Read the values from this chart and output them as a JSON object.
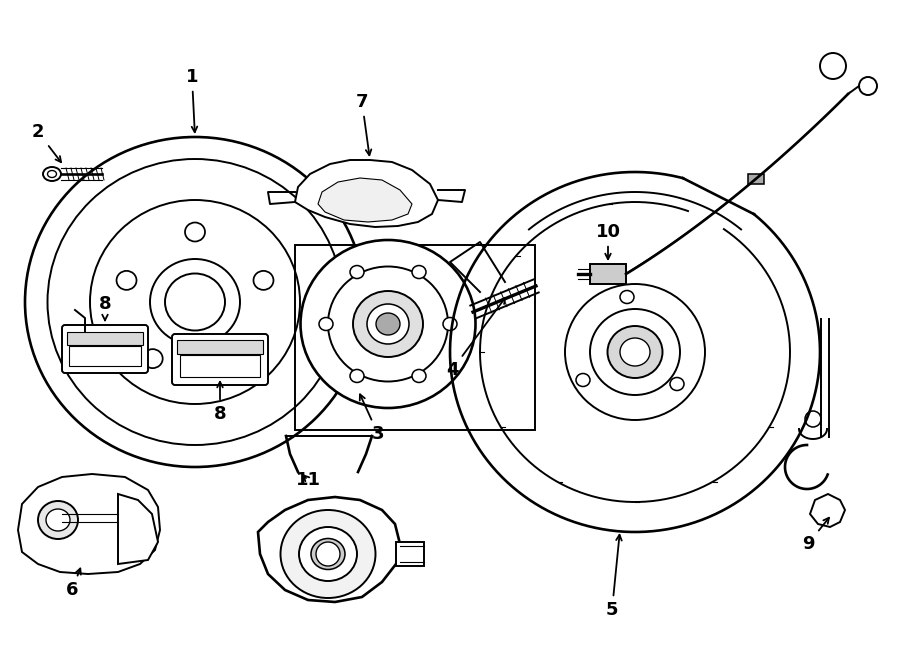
{
  "background_color": "#ffffff",
  "line_color": "#000000",
  "lw_main": 1.4,
  "lw_thin": 0.8,
  "fig_width": 9.0,
  "fig_height": 6.62,
  "font_size_labels": 13,
  "dpi": 100
}
